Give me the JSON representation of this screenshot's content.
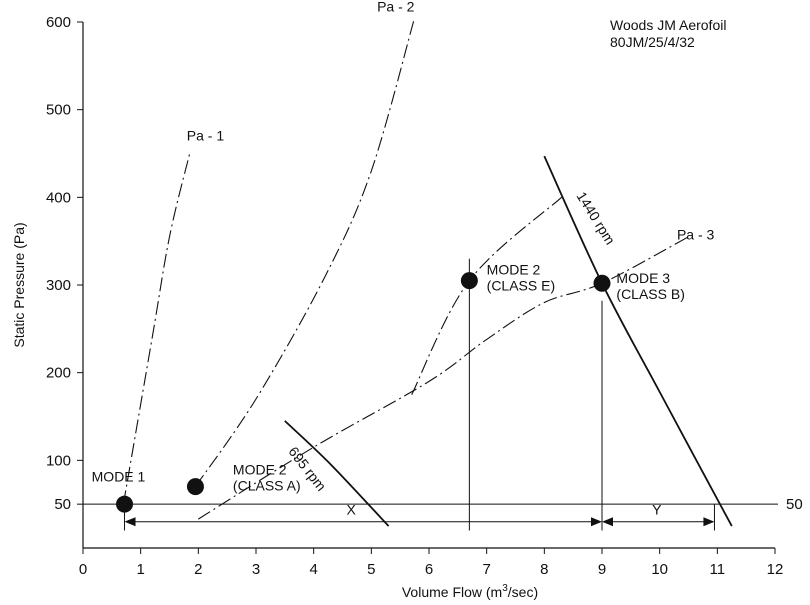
{
  "chart_data": {
    "type": "line",
    "title": "",
    "xlabel_main": "Volume Flow (m",
    "xlabel_sup": "3",
    "xlabel_tail": "/sec)",
    "ylabel": "Static Pressure (Pa)",
    "xlim": [
      0,
      12
    ],
    "ylim": [
      0,
      600
    ],
    "x_ticks": [
      0,
      1,
      2,
      3,
      4,
      5,
      6,
      7,
      8,
      9,
      10,
      11,
      12
    ],
    "y_ticks": [
      50,
      100,
      200,
      300,
      400,
      500,
      600
    ],
    "grid": false,
    "fan_label": [
      "Woods JM Aerofoil",
      "80JM/25/4/32"
    ],
    "reference_line": {
      "y": 50,
      "label": "50"
    },
    "series": [
      {
        "name": "Pa - 1",
        "style": "dashdot",
        "points": [
          [
            0.7,
            50
          ],
          [
            1.2,
            240
          ],
          [
            1.5,
            355
          ],
          [
            1.85,
            450
          ]
        ]
      },
      {
        "name": "Pa - 2",
        "style": "dashdot",
        "points": [
          [
            1.95,
            70
          ],
          [
            3.0,
            170
          ],
          [
            4.2,
            310
          ],
          [
            5.0,
            430
          ],
          [
            5.75,
            605
          ]
        ]
      },
      {
        "name": "Pa - 3",
        "style": "dashdot",
        "points": [
          [
            2.0,
            33
          ],
          [
            4.0,
            115
          ],
          [
            6.0,
            190
          ],
          [
            7.0,
            238
          ],
          [
            8.0,
            280
          ],
          [
            9.0,
            302
          ],
          [
            10.5,
            355
          ]
        ]
      },
      {
        "name": "Mode 2 Class E",
        "style": "dashdot",
        "points": [
          [
            5.7,
            175
          ],
          [
            6.7,
            305
          ],
          [
            8.3,
            400
          ]
        ]
      },
      {
        "name": "695 rpm",
        "style": "solid",
        "points": [
          [
            3.5,
            145
          ],
          [
            4.3,
            95
          ],
          [
            5.3,
            25
          ]
        ]
      },
      {
        "name": "1440 rpm",
        "style": "solid",
        "points": [
          [
            8.0,
            447
          ],
          [
            9.0,
            302
          ],
          [
            10.0,
            178
          ],
          [
            11.25,
            25
          ]
        ]
      }
    ],
    "curve_labels": [
      {
        "text": "Pa - 1",
        "x": 1.8,
        "y": 465
      },
      {
        "text": "Pa - 2",
        "x": 5.1,
        "y": 612
      },
      {
        "text": "Pa - 3",
        "x": 10.3,
        "y": 352
      },
      {
        "text": "695 rpm",
        "x": 3.55,
        "y": 110,
        "rotate": 52
      },
      {
        "text": "1440 rpm",
        "x": 8.55,
        "y": 402,
        "rotate": 58
      }
    ],
    "operating_points": [
      {
        "x": 0.72,
        "y": 50,
        "label": [
          "MODE 1"
        ],
        "label_x": 0.15,
        "label_y": 76
      },
      {
        "x": 1.95,
        "y": 70,
        "label": [
          "MODE 2",
          "(CLASS A)"
        ],
        "label_x": 2.6,
        "label_y": 84
      },
      {
        "x": 6.7,
        "y": 305,
        "label": [
          "MODE 2",
          "(CLASS E)"
        ],
        "label_x": 7.0,
        "label_y": 312
      },
      {
        "x": 9.0,
        "y": 302,
        "label": [
          "MODE 3",
          "(CLASS B)"
        ],
        "label_x": 9.25,
        "label_y": 302
      }
    ],
    "vertical_lines": [
      {
        "x": 0.72,
        "y_top": 50,
        "y_bottom": 20
      },
      {
        "x": 6.7,
        "y_top": 330,
        "y_bottom": 20
      },
      {
        "x": 9.0,
        "y_top": 282,
        "y_bottom": 20
      },
      {
        "x": 10.95,
        "y_top": 50,
        "y_bottom": 20
      }
    ],
    "dimension_arrows": [
      {
        "label": "X",
        "x_start": 0.72,
        "x_end": 9.0,
        "y": 30,
        "label_x": 4.65
      },
      {
        "label": "Y",
        "x_start": 9.0,
        "x_end": 10.95,
        "y": 30,
        "label_x": 9.95
      }
    ]
  }
}
